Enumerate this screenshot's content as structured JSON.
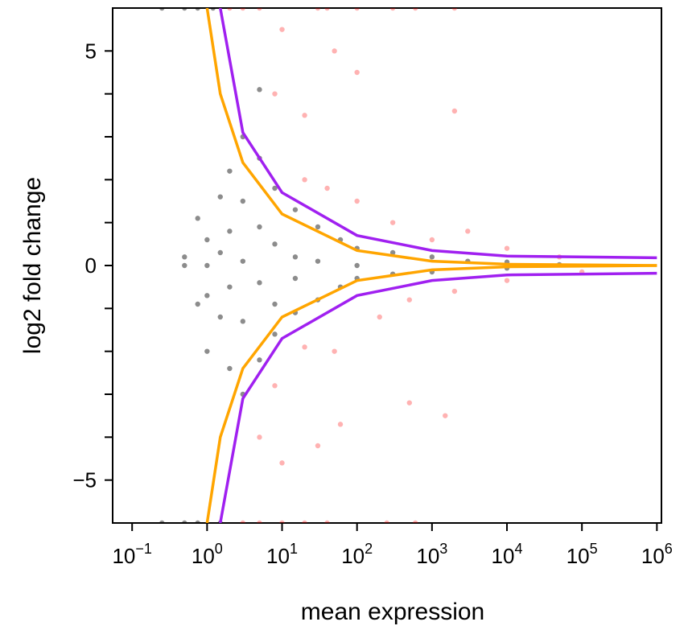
{
  "chart_data": {
    "type": "scatter",
    "xlabel": "mean expression",
    "ylabel": "log2 fold change",
    "xscale": "log",
    "xlim": [
      0.055,
      1150000
    ],
    "ylim": [
      -6,
      6
    ],
    "xticks": [
      {
        "value": 0.1,
        "label": "10",
        "exponent": "−1"
      },
      {
        "value": 1,
        "label": "10",
        "exponent": "0"
      },
      {
        "value": 10,
        "label": "10",
        "exponent": "1"
      },
      {
        "value": 100,
        "label": "10",
        "exponent": "2"
      },
      {
        "value": 1000,
        "label": "10",
        "exponent": "3"
      },
      {
        "value": 10000,
        "label": "10",
        "exponent": "4"
      },
      {
        "value": 100000,
        "label": "10",
        "exponent": "5"
      },
      {
        "value": 1000000,
        "label": "10",
        "exponent": "6"
      }
    ],
    "yticks": [
      5,
      0,
      {
        "value": -5,
        "label": "−5"
      }
    ],
    "yminor_ticks": [
      -4,
      -3,
      -2,
      -1,
      1,
      2,
      3,
      4
    ],
    "series": [
      {
        "mode": "points",
        "color": "rgba(0,0,0,0.45)",
        "x": [
          0.25,
          0.5,
          0.75,
          1.2,
          0.25,
          0.5,
          0.75,
          1.5,
          0.5,
          0.5,
          0.75,
          0.75,
          1,
          1,
          1,
          1,
          1.5,
          1.5,
          1.5,
          2,
          2,
          2,
          2,
          3,
          3,
          3,
          3,
          3,
          5,
          5,
          5,
          5,
          5,
          8,
          8,
          8,
          8,
          15,
          15,
          15,
          15,
          30,
          30,
          30,
          60,
          60,
          100,
          100,
          100,
          300,
          300,
          1000,
          1000,
          3000,
          10000,
          10000,
          50000
        ],
        "values": [
          6,
          6,
          6,
          6,
          -6,
          -6,
          -6,
          -6,
          0,
          0.2,
          1.1,
          -0.9,
          0,
          0.6,
          -0.7,
          -2,
          1.6,
          -1.2,
          0.3,
          2.2,
          -2.4,
          0.8,
          -0.5,
          3,
          -3,
          1.5,
          -1.3,
          0.1,
          4.1,
          2.5,
          -2.2,
          0.9,
          -0.4,
          1.8,
          -1.6,
          0.5,
          -0.9,
          1.3,
          -1.1,
          0.2,
          -0.3,
          0.9,
          -0.8,
          0.1,
          0.6,
          -0.5,
          0.4,
          -0.3,
          0,
          0.3,
          -0.2,
          0.2,
          -0.15,
          0.1,
          0.08,
          -0.06,
          0.02
        ]
      },
      {
        "mode": "points",
        "color": "rgba(255,0,0,0.3)",
        "x": [
          2,
          3,
          5,
          30,
          40,
          100,
          300,
          600,
          2000,
          3,
          5,
          10,
          20,
          40,
          250,
          600,
          10,
          50,
          8,
          20,
          100,
          2000,
          10,
          30,
          60,
          500,
          1500,
          20,
          40,
          100,
          300,
          1000,
          3000,
          10000,
          50000,
          20,
          50,
          200,
          500,
          2000,
          10000,
          100000,
          5,
          8
        ],
        "values": [
          6,
          6,
          6,
          6,
          6,
          6,
          6,
          6,
          6,
          -6,
          -6,
          -6,
          -6,
          -6,
          -6,
          -6,
          5.5,
          5,
          4,
          3.5,
          4.5,
          3.6,
          -4.6,
          -4.2,
          -3.7,
          -3.2,
          -3.5,
          2,
          1.8,
          1.5,
          1,
          0.6,
          0.8,
          0.4,
          0.2,
          -1.9,
          -2,
          -1.2,
          -0.8,
          -0.6,
          -0.35,
          -0.15,
          -4,
          -2.8
        ]
      },
      {
        "mode": "line",
        "color": "#FFA500",
        "x": [
          1,
          1.5,
          3,
          10,
          100,
          1000,
          10000,
          1000000
        ],
        "values": [
          6,
          4,
          2.4,
          1.2,
          0.35,
          0.1,
          0.03,
          0
        ]
      },
      {
        "mode": "line",
        "color": "#FFA500",
        "x": [
          1,
          1.5,
          3,
          10,
          100,
          1000,
          10000,
          1000000
        ],
        "values": [
          -6,
          -4,
          -2.4,
          -1.2,
          -0.35,
          -0.1,
          -0.03,
          0
        ]
      },
      {
        "mode": "line",
        "color": "#A020F0",
        "x": [
          1.5,
          3,
          10,
          100,
          1000,
          10000,
          1000000
        ],
        "values": [
          6,
          3.1,
          1.7,
          0.7,
          0.35,
          0.22,
          0.18
        ]
      },
      {
        "mode": "line",
        "color": "#A020F0",
        "x": [
          1.5,
          3,
          10,
          100,
          1000,
          10000,
          1000000
        ],
        "values": [
          -6,
          -3.1,
          -1.7,
          -0.7,
          -0.35,
          -0.22,
          -0.18
        ]
      }
    ]
  }
}
